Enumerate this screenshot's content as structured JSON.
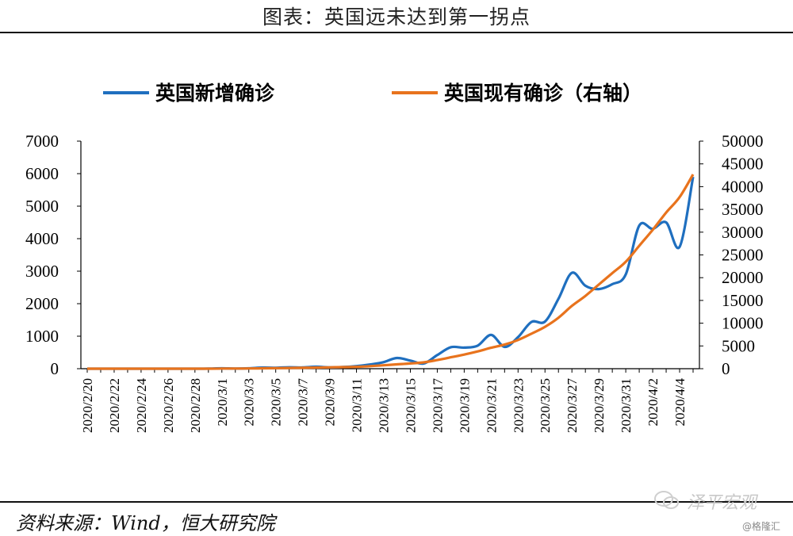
{
  "title": "图表：英国远未达到第一拐点",
  "source": "资料来源：Wind，恒大研究院",
  "watermark": "泽平宏观",
  "credit": "@格隆汇",
  "colors": {
    "new_cases": "#1f6fbf",
    "active_cases": "#e8731d"
  },
  "chart_data": {
    "type": "line",
    "x": [
      "2020/2/20",
      "2020/2/21",
      "2020/2/22",
      "2020/2/23",
      "2020/2/24",
      "2020/2/25",
      "2020/2/26",
      "2020/2/27",
      "2020/2/28",
      "2020/2/29",
      "2020/3/1",
      "2020/3/2",
      "2020/3/3",
      "2020/3/4",
      "2020/3/5",
      "2020/3/6",
      "2020/3/7",
      "2020/3/8",
      "2020/3/9",
      "2020/3/10",
      "2020/3/11",
      "2020/3/12",
      "2020/3/13",
      "2020/3/14",
      "2020/3/15",
      "2020/3/16",
      "2020/3/17",
      "2020/3/18",
      "2020/3/19",
      "2020/3/20",
      "2020/3/21",
      "2020/3/22",
      "2020/3/23",
      "2020/3/24",
      "2020/3/25",
      "2020/3/26",
      "2020/3/27",
      "2020/3/28",
      "2020/3/29",
      "2020/3/30",
      "2020/3/31",
      "2020/4/1",
      "2020/4/2",
      "2020/4/3",
      "2020/4/4",
      "2020/4/5"
    ],
    "x_tick_labels": [
      "2020/2/20",
      "2020/2/22",
      "2020/2/24",
      "2020/2/26",
      "2020/2/28",
      "2020/3/1",
      "2020/3/3",
      "2020/3/5",
      "2020/3/7",
      "2020/3/9",
      "2020/3/11",
      "2020/3/13",
      "2020/3/15",
      "2020/3/17",
      "2020/3/19",
      "2020/3/21",
      "2020/3/23",
      "2020/3/25",
      "2020/3/27",
      "2020/3/29",
      "2020/3/31",
      "2020/4/2",
      "2020/4/4"
    ],
    "series": [
      {
        "name": "英国新增确诊",
        "axis": "left",
        "values": [
          0,
          0,
          0,
          0,
          0,
          0,
          0,
          0,
          0,
          3,
          12,
          4,
          12,
          35,
          30,
          45,
          40,
          60,
          40,
          50,
          80,
          130,
          200,
          330,
          250,
          160,
          420,
          660,
          650,
          710,
          1040,
          670,
          970,
          1440,
          1450,
          2150,
          2950,
          2550,
          2450,
          2600,
          2900,
          4400,
          4300,
          4500,
          3750,
          5900
        ]
      },
      {
        "name": "英国现有确诊（右轴）",
        "axis": "right",
        "values": [
          0,
          0,
          0,
          0,
          0,
          0,
          0,
          0,
          0,
          0,
          30,
          40,
          50,
          90,
          120,
          160,
          200,
          250,
          300,
          350,
          420,
          550,
          750,
          950,
          1150,
          1400,
          1900,
          2500,
          3100,
          3800,
          4600,
          5300,
          6300,
          7700,
          9200,
          11200,
          13800,
          16000,
          18500,
          21000,
          23500,
          27000,
          30500,
          34300,
          37700,
          42700
        ]
      }
    ],
    "y_left": {
      "ylim": [
        0,
        7000
      ],
      "ticks": [
        0,
        1000,
        2000,
        3000,
        4000,
        5000,
        6000,
        7000
      ]
    },
    "y_right": {
      "ylim": [
        0,
        50000
      ],
      "ticks": [
        0,
        5000,
        10000,
        15000,
        20000,
        25000,
        30000,
        35000,
        40000,
        45000,
        50000
      ]
    },
    "legend_position": "top"
  }
}
